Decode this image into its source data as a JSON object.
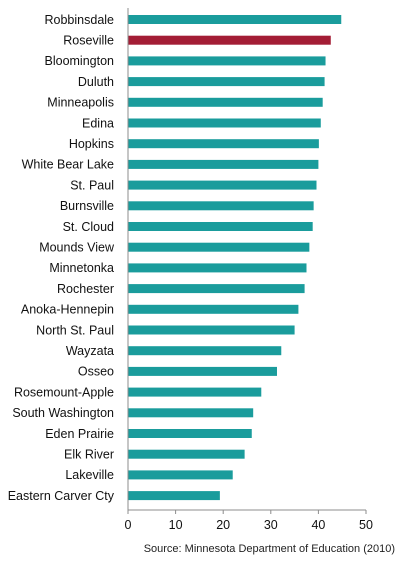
{
  "chart_data": {
    "type": "bar",
    "orientation": "horizontal",
    "categories": [
      "Robbinsdale",
      "Roseville",
      "Bloomington",
      "Duluth",
      "Minneapolis",
      "Edina",
      "Hopkins",
      "White Bear Lake",
      "St. Paul",
      "Burnsville",
      "St. Cloud",
      "Mounds View",
      "Minnetonka",
      "Rochester",
      "Anoka-Hennepin",
      "North St. Paul",
      "Wayzata",
      "Osseo",
      "Rosemount-Apple",
      "South Washington",
      "Eden Prairie",
      "Elk River",
      "Lakeville",
      "Eastern Carver Cty"
    ],
    "values": [
      44.8,
      42.6,
      41.5,
      41.3,
      40.9,
      40.5,
      40.1,
      40.0,
      39.6,
      39.0,
      38.8,
      38.1,
      37.5,
      37.1,
      35.8,
      35.0,
      32.2,
      31.3,
      28.0,
      26.3,
      26.0,
      24.5,
      22.0,
      19.3
    ],
    "highlight_category": "Roseville",
    "colors": {
      "bar": "#1a9c9c",
      "highlight": "#a31d35",
      "axis": "#8c8c8c"
    },
    "xlim": [
      0,
      50
    ],
    "xticks": [
      "0",
      "10",
      "20",
      "30",
      "40",
      "50"
    ],
    "xlabel": "",
    "ylabel": "",
    "title": "",
    "grid": false,
    "legend": "none"
  },
  "source": "Source: Minnesota Department of Education (2010)"
}
